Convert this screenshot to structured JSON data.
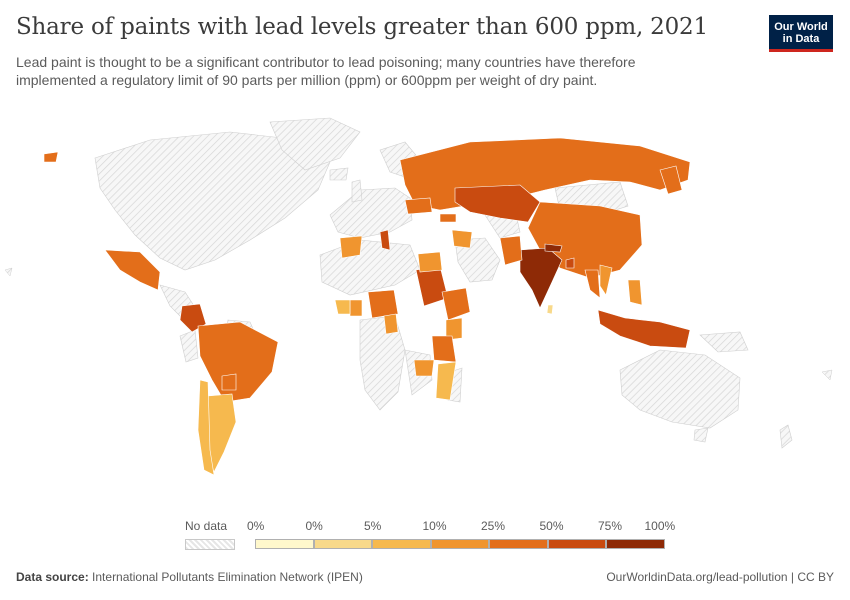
{
  "header": {
    "title": "Share of paints with lead levels greater than 600 ppm, 2021",
    "subtitle": "Lead paint is thought to be a significant contributor to lead poisoning; many countries have therefore implemented a regulatory limit of 90 parts per million (ppm) or 600ppm per weight of dry paint."
  },
  "logo": {
    "line1": "Our World",
    "line2": "in Data",
    "bg_color": "#002147",
    "accent_color": "#ce261e"
  },
  "legend": {
    "no_data_label": "No data",
    "bins": [
      {
        "from": "0%",
        "to": "0%",
        "color": "#fff8cc"
      },
      {
        "from": "0%",
        "to": "5%",
        "color": "#f8d98a"
      },
      {
        "from": "5%",
        "to": "10%",
        "color": "#f6b94e"
      },
      {
        "from": "10%",
        "to": "25%",
        "color": "#f0952f"
      },
      {
        "from": "25%",
        "to": "50%",
        "color": "#e36e1a"
      },
      {
        "from": "50%",
        "to": "75%",
        "color": "#c94b10"
      },
      {
        "from": "75%",
        "to": "100%",
        "color": "#8e2a06"
      }
    ],
    "tick_labels": [
      "0%",
      "0%",
      "5%",
      "10%",
      "25%",
      "50%",
      "75%",
      "100%"
    ]
  },
  "map": {
    "no_data_pattern": "diagonal-hatch",
    "countries_with_data": [
      {
        "region": "Russia",
        "level": 4
      },
      {
        "region": "China",
        "level": 4
      },
      {
        "region": "Kazakhstan",
        "level": 5
      },
      {
        "region": "India",
        "level": 6
      },
      {
        "region": "Pakistan",
        "level": 4
      },
      {
        "region": "Nepal",
        "level": 6
      },
      {
        "region": "Bangladesh",
        "level": 5
      },
      {
        "region": "Thailand",
        "level": 4
      },
      {
        "region": "Vietnam",
        "level": 3
      },
      {
        "region": "Philippines",
        "level": 3
      },
      {
        "region": "Indonesia",
        "level": 5
      },
      {
        "region": "Sri Lanka",
        "level": 1
      },
      {
        "region": "Mexico",
        "level": 4
      },
      {
        "region": "Colombia",
        "level": 5
      },
      {
        "region": "Brazil",
        "level": 4
      },
      {
        "region": "Paraguay",
        "level": 4
      },
      {
        "region": "Argentina",
        "level": 2
      },
      {
        "region": "Chile",
        "level": 2
      },
      {
        "region": "Sudan",
        "level": 5
      },
      {
        "region": "Ethiopia",
        "level": 4
      },
      {
        "region": "Kenya",
        "level": 3
      },
      {
        "region": "Tanzania",
        "level": 4
      },
      {
        "region": "Nigeria",
        "level": 4
      },
      {
        "region": "Ghana",
        "level": 3
      },
      {
        "region": "Ivory Coast",
        "level": 2
      },
      {
        "region": "Cameroon",
        "level": 3
      },
      {
        "region": "Egypt",
        "level": 3
      },
      {
        "region": "Tunisia",
        "level": 5
      },
      {
        "region": "Algeria",
        "level": 3
      },
      {
        "region": "Mozambique",
        "level": 2
      },
      {
        "region": "Zambia",
        "level": 3
      },
      {
        "region": "Iraq",
        "level": 3
      },
      {
        "region": "Ukraine",
        "level": 4
      },
      {
        "region": "Georgia",
        "level": 4
      },
      {
        "region": "Alaska-island",
        "level": 4
      },
      {
        "region": "Japan-region",
        "level": 4
      }
    ]
  },
  "footer": {
    "source_label": "Data source:",
    "source_text": "International Pollutants Elimination Network (IPEN)",
    "right_text": "OurWorldinData.org/lead-pollution | CC BY"
  }
}
